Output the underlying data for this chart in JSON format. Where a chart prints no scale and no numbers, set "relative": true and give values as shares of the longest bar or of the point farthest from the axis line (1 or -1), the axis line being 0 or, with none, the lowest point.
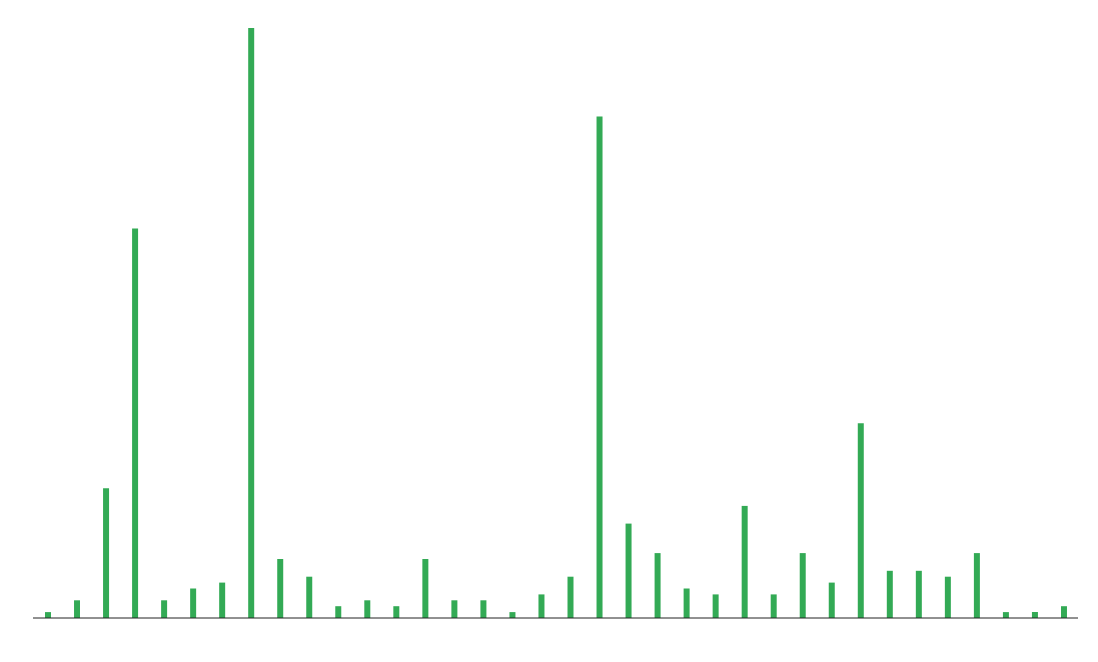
{
  "chart_data": {
    "type": "bar",
    "relative": true,
    "categories": [
      null,
      null,
      null,
      null,
      null,
      null,
      null,
      null,
      null,
      null,
      null,
      null,
      null,
      null,
      null,
      null,
      null,
      null,
      null,
      null,
      null,
      null,
      null,
      null,
      null,
      null,
      null,
      null,
      null,
      null,
      null,
      null,
      null,
      null,
      null,
      null
    ],
    "values": [
      0.01,
      0.03,
      0.22,
      0.66,
      0.03,
      0.05,
      0.06,
      1,
      0.1,
      0.07,
      0.02,
      0.03,
      0.02,
      0.1,
      0.03,
      0.03,
      0.01,
      0.04,
      0.07,
      0.85,
      0.16,
      0.11,
      0.05,
      0.04,
      0.19,
      0.04,
      0.11,
      0.06,
      0.33,
      0.08,
      0.08,
      0.07,
      0.11,
      0.01,
      0.01,
      0.02
    ],
    "color": "#33aa55"
  }
}
